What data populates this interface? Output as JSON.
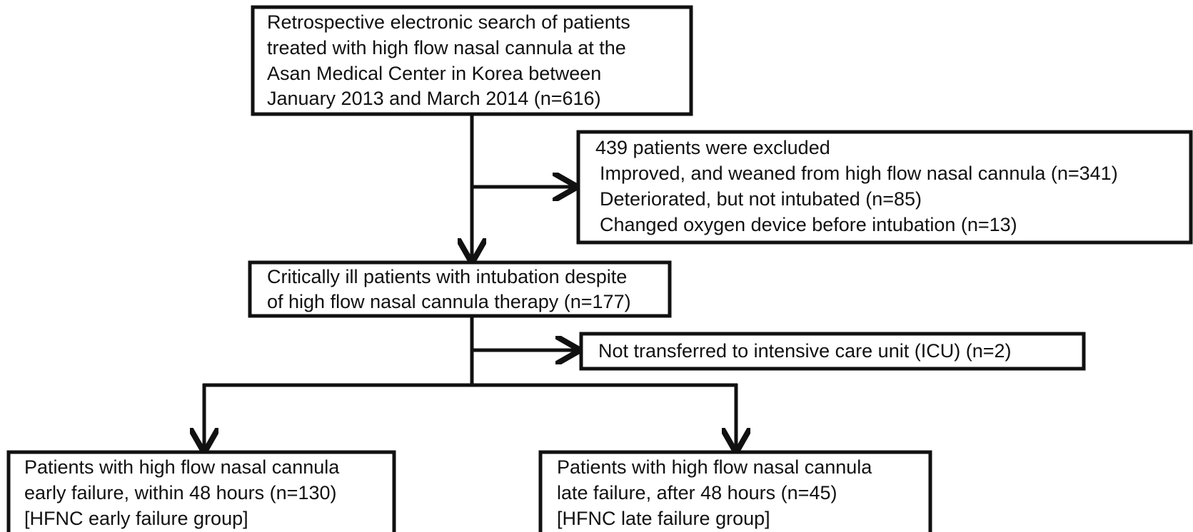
{
  "nodes": [
    {
      "lines": [
        "Retrospective electronic search of patients",
        "treated with high flow nasal cannula at the",
        "Asan Medical  Center in Korea between",
        "January 2013 and March 2014 (n=616)"
      ]
    },
    {
      "lines": [
        "439 patients were excluded",
        "Improved, and weaned from high flow nasal cannula (n=341)",
        "Deteriorated, but not intubated (n=85)",
        "Changed oxygen device before intubation (n=13)"
      ]
    },
    {
      "lines": [
        "Critically ill patients with intubation despite",
        "of high flow nasal cannula therapy (n=177)"
      ]
    },
    {
      "lines": [
        "Not transferred to intensive care unit (ICU) (n=2)"
      ]
    },
    {
      "lines": [
        "Patients with high flow nasal cannula",
        "early failure, within 48 hours (n=130)",
        "[HFNC  early failure group]"
      ]
    },
    {
      "lines": [
        "Patients with high flow nasal cannula",
        "late failure, after 48 hours (n=45)",
        "[HFNC  late failure group]"
      ]
    }
  ]
}
